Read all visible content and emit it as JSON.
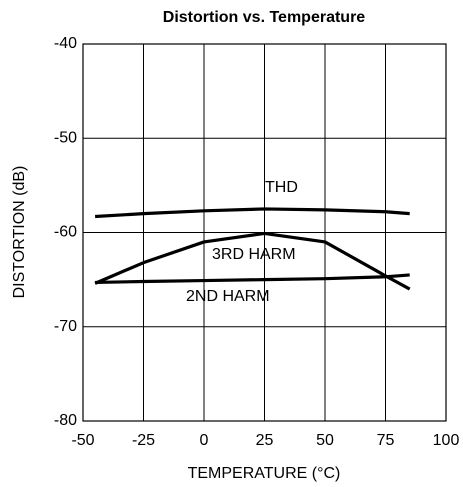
{
  "chart_data": {
    "type": "line",
    "title": "Distortion vs. Temperature",
    "x_label": "TEMPERATURE (°C)",
    "y_label": "DISTORTION (dB)",
    "x": [
      -45,
      -25,
      0,
      25,
      50,
      75,
      85
    ],
    "series": [
      {
        "name": "THD",
        "color": "#000000",
        "values": [
          -58.3,
          -58.0,
          -57.7,
          -57.5,
          -57.6,
          -57.8,
          -58.0
        ]
      },
      {
        "name": "3RD HARM",
        "color": "#000000",
        "values": [
          -65.4,
          -63.2,
          -61.0,
          -60.1,
          -61.0,
          -64.6,
          -66.0
        ]
      },
      {
        "name": "2ND HARM",
        "color": "#000000",
        "values": [
          -65.3,
          -65.2,
          -65.1,
          -65.0,
          -64.9,
          -64.7,
          -64.5
        ]
      }
    ],
    "xlim": [
      -50,
      100
    ],
    "xticks": [
      -50,
      -25,
      0,
      25,
      50,
      75,
      100
    ],
    "ylim": [
      -80,
      -40
    ],
    "yticks": [
      -80,
      -70,
      -60,
      -50,
      -40
    ],
    "grid": true
  }
}
